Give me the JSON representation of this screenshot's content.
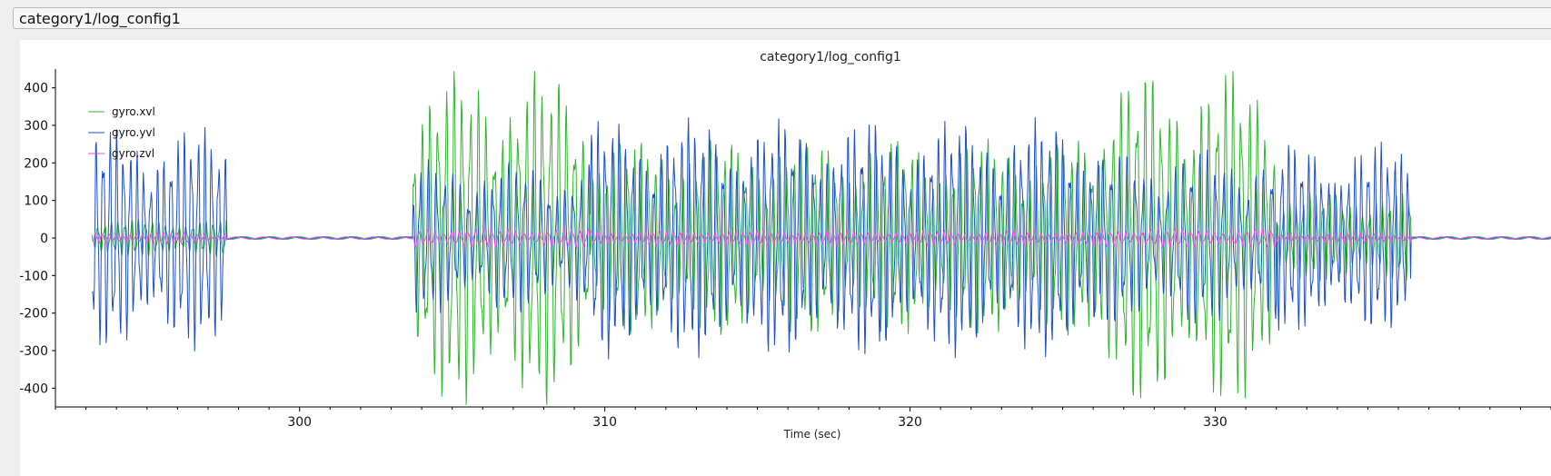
{
  "toolbar": {
    "path": "category1/log_config1"
  },
  "chart_data": {
    "type": "line",
    "title": "category1/log_config1",
    "xlabel": "Time (sec)",
    "ylabel": "",
    "xlim": [
      292,
      341
    ],
    "ylim": [
      -450,
      450
    ],
    "xticks": [
      300,
      310,
      320,
      330
    ],
    "yticks": [
      400,
      300,
      200,
      100,
      0,
      -100,
      -200,
      -300,
      -400
    ],
    "legend_position": "top-left",
    "segments": [
      {
        "start": 293.2,
        "end": 297.6,
        "amp_x": 50,
        "amp_y": 290,
        "amp_z": 15,
        "freq": 4.5
      },
      {
        "start": 303.7,
        "end": 309.5,
        "amp_x": 440,
        "amp_y": 200,
        "amp_z": 25,
        "freq": 3.8
      },
      {
        "start": 309.5,
        "end": 326.2,
        "amp_x": 260,
        "amp_y": 310,
        "amp_z": 20,
        "freq": 4.4
      },
      {
        "start": 326.2,
        "end": 332.0,
        "amp_x": 440,
        "amp_y": 230,
        "amp_z": 25,
        "freq": 3.8
      },
      {
        "start": 332.0,
        "end": 336.4,
        "amp_x": 120,
        "amp_y": 250,
        "amp_z": 15,
        "freq": 4.6
      }
    ],
    "series": [
      {
        "name": "gyro.xvl",
        "color": "#2fb52f",
        "key": "amp_x",
        "phase": 0.0
      },
      {
        "name": "gyro.yvl",
        "color": "#1f4fc8",
        "key": "amp_y",
        "phase": 1.3
      },
      {
        "name": "gyro.zvl",
        "color": "#e64fe6",
        "key": "amp_z",
        "phase": 2.1
      }
    ]
  }
}
